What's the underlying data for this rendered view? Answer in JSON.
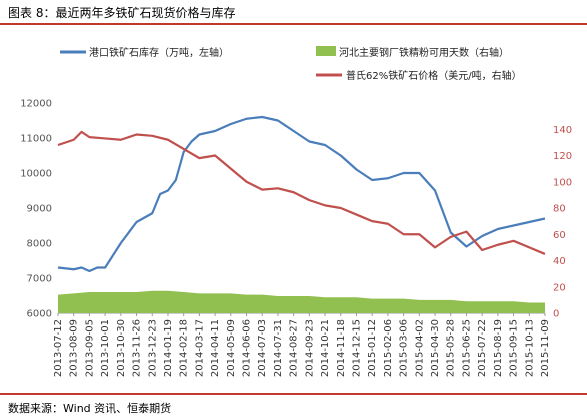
{
  "title": "图表 8：最近两年多铁矿石现货价格与库存",
  "source": "数据来源：Wind 资讯、恒泰期货",
  "colors": {
    "inventory": "#4a7ebb",
    "days": "#92c050",
    "price": "#c0504d",
    "rule": "#c0392b",
    "left_axis_text": "#555555",
    "right_axis_text": "#c0504d"
  },
  "chart_data": {
    "type": "line",
    "legend": {
      "placement": "top",
      "entries": [
        "港口铁矿石库存（万吨，左轴）",
        "河北主要钢厂铁精粉可用天数（右轴）",
        "普氏62%铁矿石价格（美元/吨，右轴）"
      ]
    },
    "y_left": {
      "range": [
        6000,
        12000
      ],
      "ticks": [
        "6000",
        "7000",
        "8000",
        "9000",
        "10000",
        "11000",
        "12000"
      ]
    },
    "y_right": {
      "range": [
        0,
        160
      ],
      "ticks": [
        "0",
        "20",
        "40",
        "60",
        "80",
        "100",
        "120",
        "140"
      ]
    },
    "x_tick_labels": [
      "2013-07-12",
      "2013-08-09",
      "2013-09-05",
      "2013-10-01",
      "2013-10-30",
      "2013-11-26",
      "2013-12-23",
      "2014-01-19",
      "2014-02-18",
      "2014-03-17",
      "2014-04-11",
      "2014-05-09",
      "2014-06-06",
      "2014-07-03",
      "2014-07-31",
      "2014-08-27",
      "2014-09-23",
      "2014-10-21",
      "2014-11-18",
      "2014-12-15",
      "2015-01-12",
      "2015-02-06",
      "2015-03-06",
      "2015-04-02",
      "2015-04-30",
      "2015-05-28",
      "2015-06-25",
      "2015-07-22",
      "2015-08-19",
      "2015-09-15",
      "2015-10-13",
      "2015-11-09"
    ],
    "series": [
      {
        "name": "港口铁矿石库存（万吨，左轴）",
        "axis": "left",
        "style": "line",
        "points": [
          [
            0,
            7300
          ],
          [
            1,
            7250
          ],
          [
            1.5,
            7300
          ],
          [
            2,
            7200
          ],
          [
            2.5,
            7300
          ],
          [
            3,
            7300
          ],
          [
            4,
            8000
          ],
          [
            5,
            8600
          ],
          [
            6,
            8850
          ],
          [
            6.5,
            9400
          ],
          [
            7,
            9500
          ],
          [
            7.5,
            9800
          ],
          [
            8,
            10600
          ],
          [
            8.5,
            10900
          ],
          [
            9,
            11100
          ],
          [
            10,
            11200
          ],
          [
            11,
            11400
          ],
          [
            12,
            11550
          ],
          [
            13,
            11600
          ],
          [
            14,
            11500
          ],
          [
            15,
            11200
          ],
          [
            16,
            10900
          ],
          [
            17,
            10800
          ],
          [
            18,
            10500
          ],
          [
            19,
            10100
          ],
          [
            20,
            9800
          ],
          [
            21,
            9850
          ],
          [
            22,
            10000
          ],
          [
            23,
            10000
          ],
          [
            24,
            9500
          ],
          [
            25,
            8300
          ],
          [
            26,
            7900
          ],
          [
            27,
            8200
          ],
          [
            28,
            8400
          ],
          [
            29,
            8500
          ],
          [
            30,
            8600
          ],
          [
            31,
            8700
          ]
        ]
      },
      {
        "name": "河北主要钢厂铁精粉可用天数（右轴）",
        "axis": "right",
        "style": "area",
        "points": [
          [
            0,
            14
          ],
          [
            1,
            15
          ],
          [
            2,
            16
          ],
          [
            3,
            16
          ],
          [
            4,
            16
          ],
          [
            5,
            16
          ],
          [
            6,
            17
          ],
          [
            7,
            17
          ],
          [
            8,
            16
          ],
          [
            9,
            15
          ],
          [
            10,
            15
          ],
          [
            11,
            15
          ],
          [
            12,
            14
          ],
          [
            13,
            14
          ],
          [
            14,
            13
          ],
          [
            15,
            13
          ],
          [
            16,
            13
          ],
          [
            17,
            12
          ],
          [
            18,
            12
          ],
          [
            19,
            12
          ],
          [
            20,
            11
          ],
          [
            21,
            11
          ],
          [
            22,
            11
          ],
          [
            23,
            10
          ],
          [
            24,
            10
          ],
          [
            25,
            10
          ],
          [
            26,
            9
          ],
          [
            27,
            9
          ],
          [
            28,
            9
          ],
          [
            29,
            9
          ],
          [
            30,
            8
          ],
          [
            31,
            8
          ]
        ]
      },
      {
        "name": "普氏62%铁矿石价格（美元/吨，右轴）",
        "axis": "right",
        "style": "line",
        "points": [
          [
            0,
            128
          ],
          [
            1,
            132
          ],
          [
            1.5,
            138
          ],
          [
            2,
            134
          ],
          [
            3,
            133
          ],
          [
            4,
            132
          ],
          [
            5,
            136
          ],
          [
            6,
            135
          ],
          [
            7,
            132
          ],
          [
            8,
            125
          ],
          [
            9,
            118
          ],
          [
            10,
            120
          ],
          [
            11,
            110
          ],
          [
            12,
            100
          ],
          [
            13,
            94
          ],
          [
            14,
            95
          ],
          [
            15,
            92
          ],
          [
            16,
            86
          ],
          [
            17,
            82
          ],
          [
            18,
            80
          ],
          [
            19,
            75
          ],
          [
            20,
            70
          ],
          [
            21,
            68
          ],
          [
            22,
            60
          ],
          [
            23,
            60
          ],
          [
            24,
            50
          ],
          [
            25,
            58
          ],
          [
            26,
            62
          ],
          [
            27,
            48
          ],
          [
            28,
            52
          ],
          [
            29,
            55
          ],
          [
            30,
            50
          ],
          [
            31,
            45
          ]
        ]
      }
    ]
  }
}
